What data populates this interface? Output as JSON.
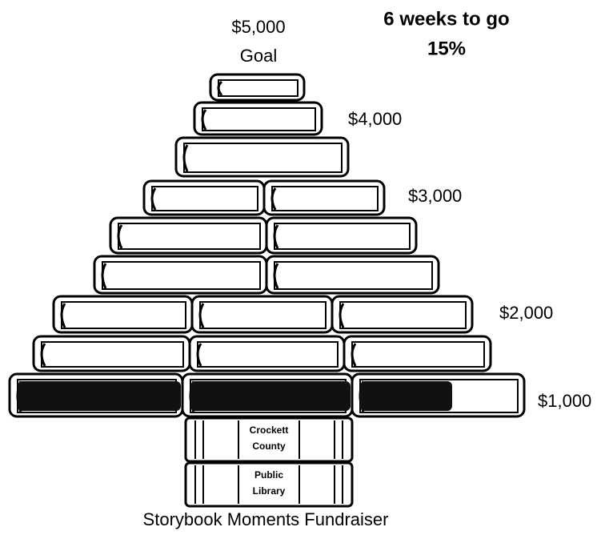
{
  "goal": {
    "amount": "$5,000",
    "label": "Goal"
  },
  "status": {
    "countdown": "6 weeks to go",
    "progress": "15%"
  },
  "milestones": [
    "$4,000",
    "$3,000",
    "$2,000",
    "$1,000"
  ],
  "trunk": {
    "line1": [
      "Crockett",
      "County"
    ],
    "line2": [
      "Public",
      "Library"
    ]
  },
  "title": "Storybook Moments Fundraiser"
}
